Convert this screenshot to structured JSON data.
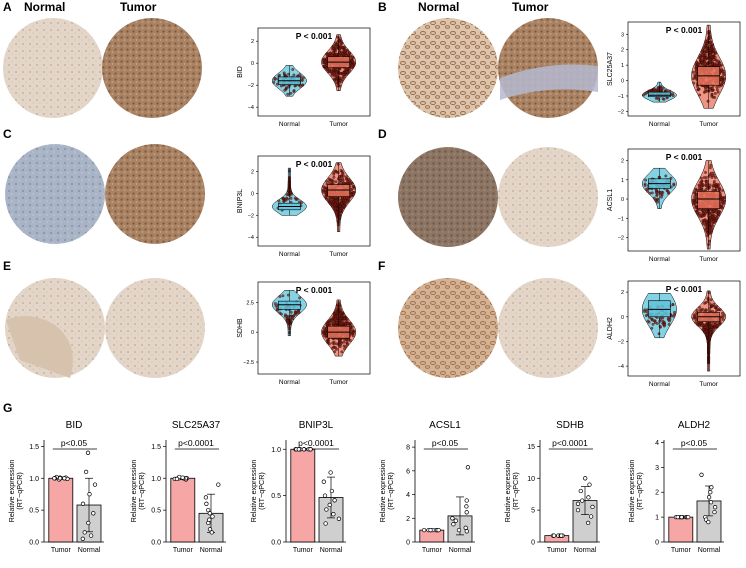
{
  "panel_letters": [
    "A",
    "B",
    "C",
    "D",
    "E",
    "F",
    "G"
  ],
  "ihc": {
    "normal_label": "Normal",
    "tumor_label": "Tumor"
  },
  "colors": {
    "normal": "#5ec3dc",
    "tumor": "#e8735c",
    "tumor_bar": "#f7a6a6",
    "normal_bar": "#cfcfcf",
    "point": "#7a1a10"
  },
  "chart_data": [
    {
      "panel": "A",
      "type": "violin-box",
      "title": "P < 0.001",
      "ylabel": "BID",
      "categories": [
        "Normal",
        "Tumor"
      ],
      "yticks": [
        -4,
        -2,
        0,
        2
      ],
      "ylim": [
        -4.8,
        3.2
      ],
      "series": [
        {
          "name": "Normal",
          "median": -1.6,
          "q1": -1.95,
          "q3": -1.25,
          "min": -3.0,
          "max": -0.2,
          "n": 70
        },
        {
          "name": "Tumor",
          "median": 0.1,
          "q1": -0.4,
          "q3": 0.6,
          "min": -2.5,
          "max": 2.6,
          "n": 380
        }
      ]
    },
    {
      "panel": "B",
      "type": "violin-box",
      "title": "P < 0.001",
      "ylabel": "SLC25A37",
      "categories": [
        "Normal",
        "Tumor"
      ],
      "yticks": [
        -2,
        -1,
        0,
        1,
        2,
        3
      ],
      "ylim": [
        -2.3,
        3.8
      ],
      "series": [
        {
          "name": "Normal",
          "median": -0.95,
          "q1": -1.05,
          "q3": -0.75,
          "min": -1.4,
          "max": -0.1,
          "n": 70
        },
        {
          "name": "Tumor",
          "median": 0.3,
          "q1": -0.3,
          "q3": 0.9,
          "min": -1.8,
          "max": 3.6,
          "n": 380
        }
      ]
    },
    {
      "panel": "C",
      "type": "violin-box",
      "title": "P < 0.001",
      "ylabel": "BNIP3L",
      "categories": [
        "Normal",
        "Tumor"
      ],
      "yticks": [
        -4,
        -2,
        0,
        2
      ],
      "ylim": [
        -4.8,
        3.4
      ],
      "series": [
        {
          "name": "Normal",
          "median": -1.2,
          "q1": -1.5,
          "q3": -0.9,
          "min": -2.0,
          "max": 2.3,
          "n": 70
        },
        {
          "name": "Tumor",
          "median": 0.3,
          "q1": -0.3,
          "q3": 0.8,
          "min": -3.5,
          "max": 2.8,
          "n": 380
        }
      ]
    },
    {
      "panel": "D",
      "type": "violin-box",
      "title": "P < 0.001",
      "ylabel": "ACSL1",
      "categories": [
        "Normal",
        "Tumor"
      ],
      "yticks": [
        -2,
        -1,
        0,
        1,
        2
      ],
      "ylim": [
        -2.7,
        2.6
      ],
      "series": [
        {
          "name": "Normal",
          "median": 0.8,
          "q1": 0.55,
          "q3": 1.05,
          "min": -0.5,
          "max": 1.6,
          "n": 70
        },
        {
          "name": "Tumor",
          "median": 0.0,
          "q1": -0.5,
          "q3": 0.4,
          "min": -2.6,
          "max": 2.0,
          "n": 380
        }
      ]
    },
    {
      "panel": "E",
      "type": "violin-box",
      "title": "P < 0.001",
      "ylabel": "SDHB",
      "categories": [
        "Normal",
        "Tumor"
      ],
      "yticks": [
        -2.5,
        0.0,
        2.5
      ],
      "ylim": [
        -3.5,
        4.2
      ],
      "series": [
        {
          "name": "Normal",
          "median": 2.3,
          "q1": 1.9,
          "q3": 2.6,
          "min": -0.3,
          "max": 3.5,
          "n": 70
        },
        {
          "name": "Tumor",
          "median": 0.0,
          "q1": -0.5,
          "q3": 0.5,
          "min": -2.0,
          "max": 2.7,
          "n": 380
        }
      ]
    },
    {
      "panel": "F",
      "type": "violin-box",
      "title": "P < 0.001",
      "ylabel": "ALDH2",
      "categories": [
        "Normal",
        "Tumor"
      ],
      "yticks": [
        -4,
        -2,
        0,
        2
      ],
      "ylim": [
        -4.8,
        2.9
      ],
      "series": [
        {
          "name": "Normal",
          "median": 0.6,
          "q1": 0.0,
          "q3": 1.3,
          "min": -1.7,
          "max": 1.9,
          "n": 70
        },
        {
          "name": "Tumor",
          "median": 0.0,
          "q1": -0.4,
          "q3": 0.35,
          "min": -4.4,
          "max": 2.1,
          "n": 380
        }
      ]
    }
  ],
  "bar_data": [
    {
      "type": "bar",
      "title": "BID",
      "pvalue": "p<0.05",
      "ylabel": "Relative expression\n(RT−qPCR)",
      "categories": [
        "Tumor",
        "Normal"
      ],
      "values": [
        1.0,
        0.58
      ],
      "errors": [
        0.02,
        0.42
      ],
      "yticks": [
        0.0,
        0.5,
        1.0,
        1.5
      ],
      "ymax": 1.6,
      "yfmt": 1,
      "points": [
        [
          1.02,
          1.0,
          0.99,
          1.01,
          0.98,
          1.0,
          1.01,
          0.99,
          1.0,
          1.0
        ],
        [
          1.4,
          1.1,
          0.9,
          0.75,
          0.6,
          0.45,
          0.3,
          0.15,
          0.05,
          0.1
        ]
      ]
    },
    {
      "type": "bar",
      "title": "SLC25A37",
      "pvalue": "p<0.0001",
      "ylabel": "Relative expression\n(RT−qPCR)",
      "categories": [
        "Tumor",
        "Normal"
      ],
      "values": [
        1.0,
        0.45
      ],
      "errors": [
        0.02,
        0.3
      ],
      "yticks": [
        0.0,
        0.5,
        1.0,
        1.5
      ],
      "ymax": 1.6,
      "yfmt": 1,
      "points": [
        [
          1.0,
          0.99,
          1.01,
          1.0,
          0.98,
          1.02,
          1.0,
          0.99,
          1.0,
          1.01
        ],
        [
          0.9,
          0.7,
          0.6,
          0.5,
          0.45,
          0.4,
          0.3,
          0.2,
          0.15,
          0.35
        ]
      ]
    },
    {
      "type": "bar",
      "title": "BNIP3L",
      "pvalue": "p<0.0001",
      "ylabel": "Relative expression\n(RT−qPCR)",
      "categories": [
        "Tumor",
        "Normal"
      ],
      "values": [
        1.0,
        0.48
      ],
      "errors": [
        0.01,
        0.22
      ],
      "yticks": [
        0.0,
        0.5,
        1.0
      ],
      "ymax": 1.1,
      "yfmt": 1,
      "points": [
        [
          1.0,
          1.0,
          1.0,
          1.0,
          1.0,
          1.0,
          1.0,
          1.0,
          1.0,
          1.0
        ],
        [
          0.75,
          0.65,
          0.55,
          0.5,
          0.45,
          0.4,
          0.35,
          0.3,
          0.25,
          0.2
        ]
      ]
    },
    {
      "type": "bar",
      "title": "ACSL1",
      "pvalue": "p<0.05",
      "ylabel": "Relative expression\n(RT−qPCR)",
      "categories": [
        "Tumor",
        "Normal"
      ],
      "values": [
        1.0,
        2.2
      ],
      "errors": [
        0.05,
        1.6
      ],
      "yticks": [
        0,
        2,
        4,
        6,
        8
      ],
      "ymax": 8.6,
      "yfmt": 0,
      "points": [
        [
          1.0,
          1.0,
          1.0,
          1.0,
          1.0,
          1.0,
          1.0,
          1.0,
          1.0,
          1.0
        ],
        [
          6.3,
          3.5,
          3.0,
          2.5,
          2.0,
          1.8,
          1.5,
          1.2,
          1.0,
          0.9
        ]
      ]
    },
    {
      "type": "bar",
      "title": "SDHB",
      "pvalue": "p<0.0001",
      "ylabel": "Relative expression\n(RT−qPCR)",
      "categories": [
        "Tumor",
        "Normal"
      ],
      "values": [
        1.0,
        6.5
      ],
      "errors": [
        0.05,
        2.2
      ],
      "yticks": [
        0,
        5,
        10,
        15
      ],
      "ymax": 16,
      "yfmt": 0,
      "points": [
        [
          1.0,
          1.0,
          1.0,
          1.0,
          1.0,
          1.0,
          1.0,
          1.0,
          1.0,
          1.0
        ],
        [
          10.0,
          9.0,
          8.0,
          7.0,
          6.5,
          6.0,
          5.5,
          5.0,
          4.0,
          3.0
        ]
      ]
    },
    {
      "type": "bar",
      "title": "ALDH2",
      "pvalue": "p<0.05",
      "ylabel": "Relative expression\n(RT−qPCR)",
      "categories": [
        "Tumor",
        "Normal"
      ],
      "values": [
        1.0,
        1.65
      ],
      "errors": [
        0.04,
        0.6
      ],
      "yticks": [
        0,
        1,
        2,
        3,
        4
      ],
      "ymax": 4.1,
      "yfmt": 0,
      "points": [
        [
          1.0,
          1.0,
          1.0,
          1.0,
          1.0,
          1.0,
          1.0,
          1.0,
          1.0,
          1.0
        ],
        [
          2.7,
          2.2,
          2.0,
          1.8,
          1.6,
          1.4,
          1.2,
          1.0,
          0.9,
          0.8
        ]
      ]
    }
  ]
}
